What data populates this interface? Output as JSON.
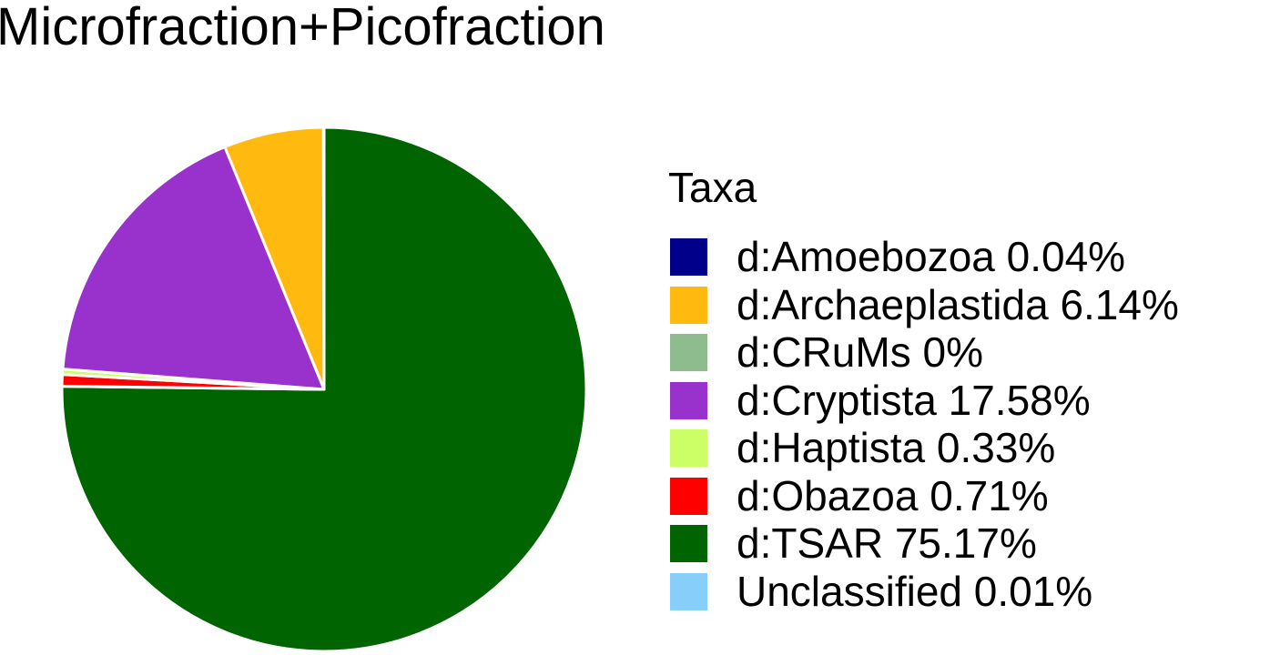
{
  "title": "Microfraction+Picofraction",
  "chart_data": {
    "type": "pie",
    "title": "Microfraction+Picofraction",
    "legend_title": "Taxa",
    "legend_position": "right",
    "start": "top",
    "direction": "clockwise",
    "slices": [
      {
        "label": "d:TSAR 75.17%",
        "name": "d:TSAR",
        "value": 75.17,
        "color": "#006400"
      },
      {
        "label": "Unclassified 0.01%",
        "name": "Unclassified",
        "value": 0.01,
        "color": "#87CEFA"
      },
      {
        "label": "d:Obazoa 0.71%",
        "name": "d:Obazoa",
        "value": 0.71,
        "color": "#FF0000"
      },
      {
        "label": "d:Haptista 0.33%",
        "name": "d:Haptista",
        "value": 0.33,
        "color": "#CCFF66"
      },
      {
        "label": "d:CRuMs 0%",
        "name": "d:CRuMs",
        "value": 0,
        "color": "#8FBC8F"
      },
      {
        "label": "d:Cryptista 17.58%",
        "name": "d:Cryptista",
        "value": 17.58,
        "color": "#9932CC"
      },
      {
        "label": "d:Archaeplastida 6.14%",
        "name": "d:Archaeplastida",
        "value": 6.14,
        "color": "#FFB90F"
      },
      {
        "label": "d:Amoebozoa 0.04%",
        "name": "d:Amoebozoa",
        "value": 0.04,
        "color": "#00008B"
      }
    ],
    "legend": [
      {
        "label": "d:Amoebozoa 0.04%",
        "color": "#00008B"
      },
      {
        "label": "d:Archaeplastida 6.14%",
        "color": "#FFB90F"
      },
      {
        "label": "d:CRuMs 0%",
        "color": "#8FBC8F"
      },
      {
        "label": "d:Cryptista 17.58%",
        "color": "#9932CC"
      },
      {
        "label": "d:Haptista 0.33%",
        "color": "#CCFF66"
      },
      {
        "label": "d:Obazoa 0.71%",
        "color": "#FF0000"
      },
      {
        "label": "d:TSAR 75.17%",
        "color": "#006400"
      },
      {
        "label": "Unclassified 0.01%",
        "color": "#87CEFA"
      }
    ]
  }
}
